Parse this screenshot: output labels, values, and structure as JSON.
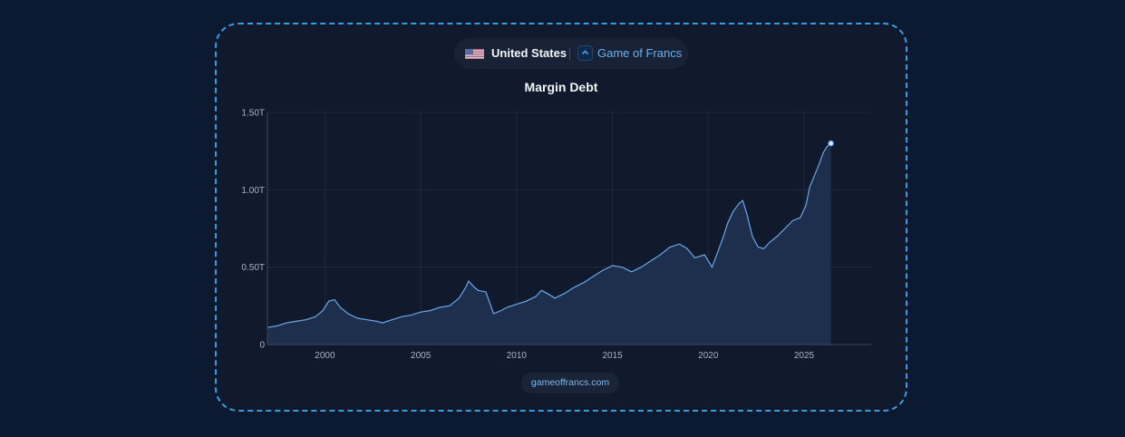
{
  "header": {
    "country": "United States",
    "brand": "Game of Francs"
  },
  "icons": {
    "flag": "us-flag-icon",
    "brand": "game-of-francs-logo-icon"
  },
  "colors": {
    "background": "#0b1a30",
    "card": "#111a2c",
    "border": "#3b9be0",
    "line": "#6aa7e8",
    "area": "#1d2f4d"
  },
  "footer": {
    "site": "gameoffrancs.com"
  },
  "chart_data": {
    "type": "area",
    "title": "Margin Debt",
    "xlabel": "",
    "ylabel": "",
    "xlim": [
      1997,
      2028.5
    ],
    "ylim": [
      0,
      1.5
    ],
    "x_ticks": [
      2000,
      2005,
      2010,
      2015,
      2020,
      2025
    ],
    "x_tick_labels": [
      "2000",
      "2005",
      "2010",
      "2015",
      "2020",
      "2025"
    ],
    "y_ticks": [
      0,
      0.5,
      1.0,
      1.5
    ],
    "y_tick_labels": [
      "0",
      "0.50T",
      "1.00T",
      "1.50T"
    ],
    "grid": true,
    "series": [
      {
        "units": "trillions USD",
        "x": [
          1997.0,
          1997.5,
          1998.0,
          1998.5,
          1999.0,
          1999.5,
          1999.9,
          2000.2,
          2000.5,
          2000.8,
          2001.2,
          2001.7,
          2002.2,
          2002.7,
          2003.0,
          2003.5,
          2004.0,
          2004.5,
          2005.0,
          2005.5,
          2006.0,
          2006.5,
          2007.0,
          2007.3,
          2007.5,
          2007.8,
          2008.0,
          2008.4,
          2008.8,
          2009.0,
          2009.2,
          2009.5,
          2010.0,
          2010.5,
          2011.0,
          2011.3,
          2011.6,
          2012.0,
          2012.5,
          2013.0,
          2013.5,
          2014.0,
          2014.5,
          2015.0,
          2015.5,
          2016.0,
          2016.5,
          2017.0,
          2017.5,
          2018.0,
          2018.5,
          2018.9,
          2019.3,
          2019.8,
          2020.2,
          2020.5,
          2020.8,
          2021.0,
          2021.3,
          2021.6,
          2021.8,
          2022.0,
          2022.3,
          2022.6,
          2022.9,
          2023.2,
          2023.6,
          2024.0,
          2024.4,
          2024.8,
          2025.1,
          2025.3,
          2025.5,
          2025.8,
          2026.0,
          2026.2,
          2026.4
        ],
        "y": [
          0.11,
          0.12,
          0.14,
          0.15,
          0.16,
          0.18,
          0.22,
          0.28,
          0.29,
          0.24,
          0.2,
          0.17,
          0.16,
          0.15,
          0.14,
          0.16,
          0.18,
          0.19,
          0.21,
          0.22,
          0.24,
          0.25,
          0.3,
          0.36,
          0.41,
          0.37,
          0.35,
          0.34,
          0.2,
          0.21,
          0.22,
          0.24,
          0.26,
          0.28,
          0.31,
          0.35,
          0.33,
          0.3,
          0.33,
          0.37,
          0.4,
          0.44,
          0.48,
          0.51,
          0.5,
          0.47,
          0.5,
          0.54,
          0.58,
          0.63,
          0.65,
          0.62,
          0.56,
          0.58,
          0.5,
          0.6,
          0.7,
          0.78,
          0.86,
          0.91,
          0.93,
          0.85,
          0.7,
          0.63,
          0.62,
          0.66,
          0.7,
          0.75,
          0.8,
          0.82,
          0.9,
          1.02,
          1.08,
          1.17,
          1.24,
          1.28,
          1.3
        ]
      }
    ]
  }
}
